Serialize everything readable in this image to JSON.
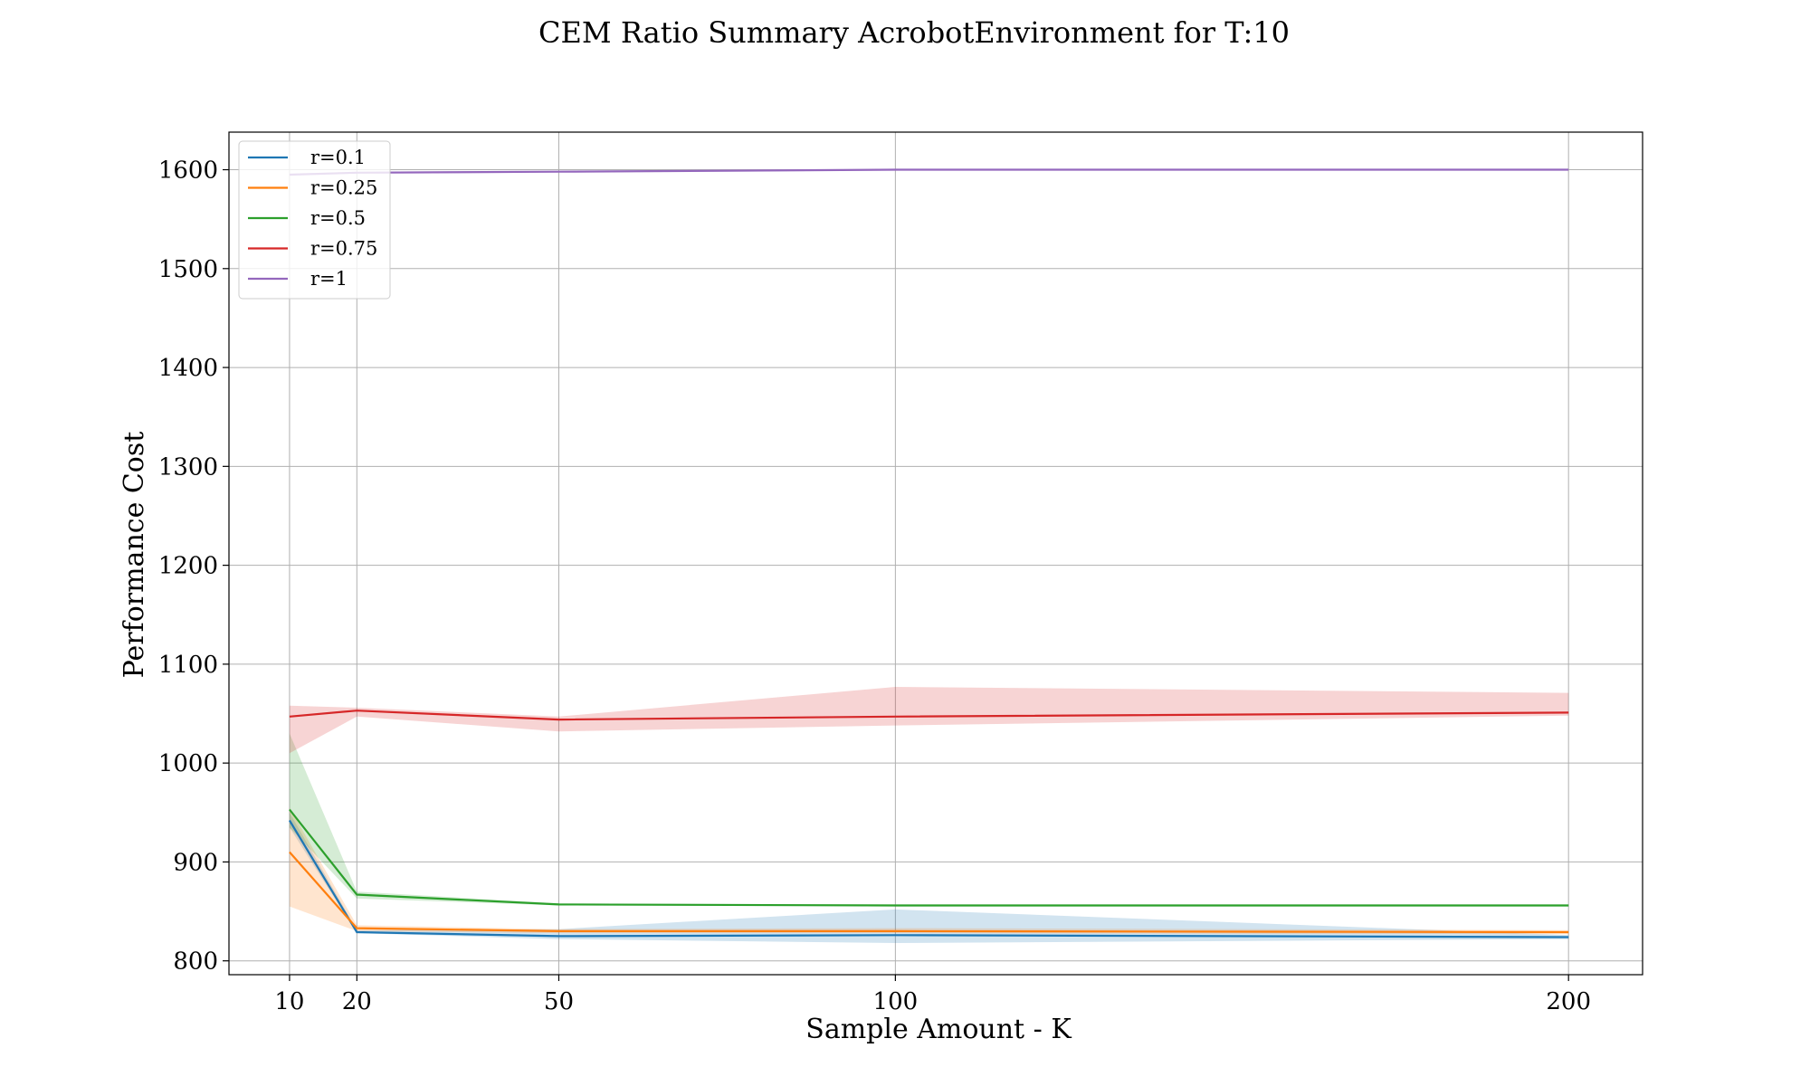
{
  "chart_data": {
    "type": "line",
    "title": "CEM Ratio Summary AcrobotEnvironment for T:10",
    "xlabel": "Sample Amount - K",
    "ylabel": "Performance Cost",
    "x": [
      10,
      20,
      50,
      100,
      200
    ],
    "x_ticks": [
      10,
      20,
      50,
      100,
      200
    ],
    "y_ticks": [
      800,
      900,
      1000,
      1100,
      1200,
      1300,
      1400,
      1500,
      1600
    ],
    "xlim": [
      1,
      211
    ],
    "ylim": [
      786,
      1638
    ],
    "grid": true,
    "legend_position": "upper-left",
    "series": [
      {
        "name": "r=0.1",
        "color": "#1f77b4",
        "values": [
          942,
          829,
          825,
          826,
          824
        ],
        "band_low": [
          935,
          828,
          822,
          818,
          822
        ],
        "band_high": [
          950,
          831,
          832,
          852,
          826
        ]
      },
      {
        "name": "r=0.25",
        "color": "#ff7f0e",
        "values": [
          910,
          833,
          830,
          830,
          829
        ],
        "band_low": [
          855,
          830,
          828,
          828,
          827
        ],
        "band_high": [
          955,
          836,
          832,
          833,
          831
        ]
      },
      {
        "name": "r=0.5",
        "color": "#2ca02c",
        "values": [
          953,
          867,
          857,
          856,
          856
        ],
        "band_low": [
          935,
          863,
          856,
          855,
          855
        ],
        "band_high": [
          1030,
          870,
          858,
          857,
          857
        ]
      },
      {
        "name": "r=0.75",
        "color": "#d62728",
        "values": [
          1047,
          1053,
          1044,
          1047,
          1051
        ],
        "band_low": [
          1010,
          1047,
          1032,
          1038,
          1048
        ],
        "band_high": [
          1058,
          1056,
          1047,
          1077,
          1071
        ]
      },
      {
        "name": "r=1",
        "color": "#9467bd",
        "values": [
          1595,
          1597,
          1598,
          1600,
          1600
        ],
        "band_low": [
          1594,
          1596,
          1597,
          1600,
          1600
        ],
        "band_high": [
          1596,
          1598,
          1599,
          1600,
          1600
        ]
      }
    ]
  }
}
